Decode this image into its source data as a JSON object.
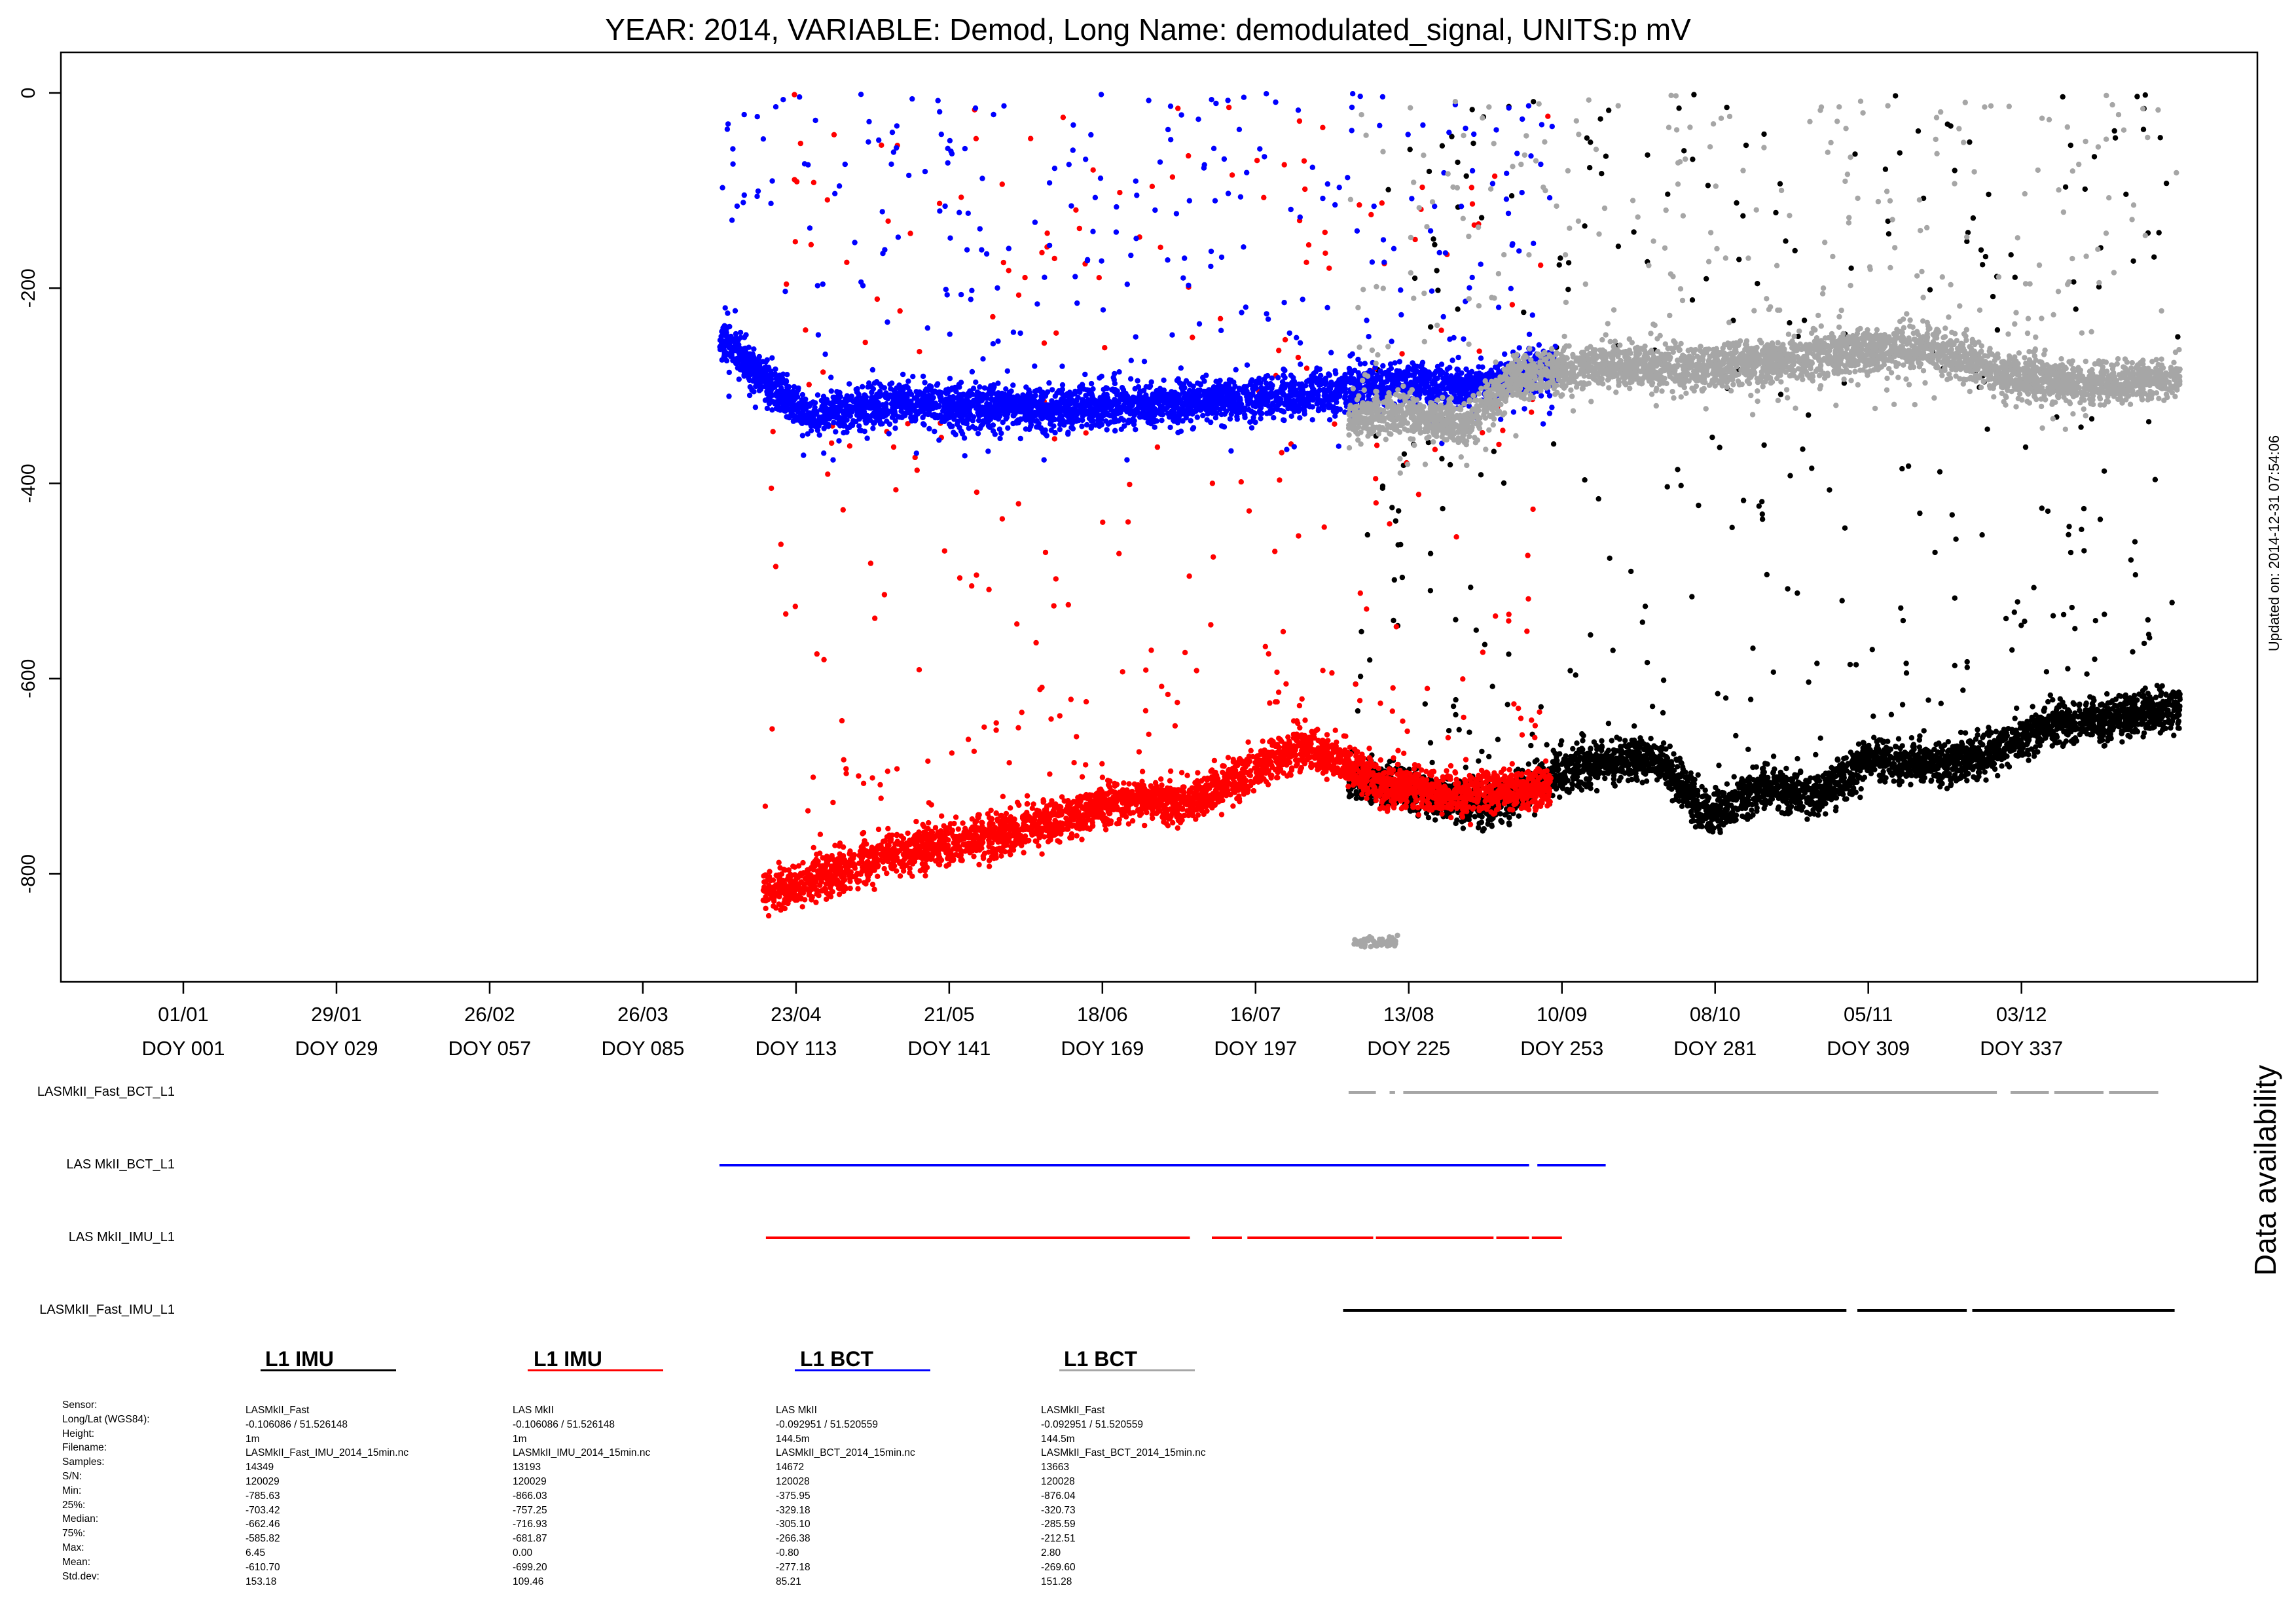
{
  "title": "YEAR: 2014, VARIABLE: Demod, Long Name: demodulated_signal, UNITS:p mV",
  "updated_label": "Updated on: 2014-12-31 07:54:06",
  "availability_title": "Data availability",
  "colors": {
    "fast_imu": "#000000",
    "mkii_imu": "#ff0000",
    "mkii_bct": "#0000ff",
    "fast_bct": "#a6a6a6"
  },
  "chart_data": {
    "type": "scatter",
    "title": "YEAR: 2014, VARIABLE: Demod, Long Name: demodulated_signal, UNITS:p mV",
    "xlabel": "",
    "ylabel": "",
    "x_unit": "day of year",
    "xlim": [
      -4,
      403
    ],
    "ylim": [
      -910,
      40
    ],
    "yticks": [
      0,
      -200,
      -400,
      -600,
      -800
    ],
    "ytick_labels": [
      "0",
      "-200",
      "-400",
      "-600",
      "-800"
    ],
    "xticks": [
      {
        "doy": 1,
        "date": "01/01",
        "label": "DOY 001"
      },
      {
        "doy": 29,
        "date": "29/01",
        "label": "DOY 029"
      },
      {
        "doy": 57,
        "date": "26/02",
        "label": "DOY 057"
      },
      {
        "doy": 85,
        "date": "26/03",
        "label": "DOY 085"
      },
      {
        "doy": 113,
        "date": "23/04",
        "label": "DOY 113"
      },
      {
        "doy": 141,
        "date": "21/05",
        "label": "DOY 141"
      },
      {
        "doy": 169,
        "date": "18/06",
        "label": "DOY 169"
      },
      {
        "doy": 197,
        "date": "16/07",
        "label": "DOY 197"
      },
      {
        "doy": 225,
        "date": "13/08",
        "label": "DOY 225"
      },
      {
        "doy": 253,
        "date": "10/09",
        "label": "DOY 253"
      },
      {
        "doy": 281,
        "date": "08/10",
        "label": "DOY 281"
      },
      {
        "doy": 309,
        "date": "05/11",
        "label": "DOY 309"
      },
      {
        "doy": 337,
        "date": "03/12",
        "label": "DOY 337"
      }
    ],
    "grid": false,
    "series": [
      {
        "name": "LASMkII_Fast_IMU_L1",
        "color": "#000000",
        "doy_range": [
          214,
          366
        ],
        "baseline": [
          [
            214,
            -700
          ],
          [
            225,
            -715
          ],
          [
            240,
            -730
          ],
          [
            255,
            -690
          ],
          [
            270,
            -680
          ],
          [
            280,
            -740
          ],
          [
            290,
            -710
          ],
          [
            300,
            -720
          ],
          [
            310,
            -680
          ],
          [
            320,
            -690
          ],
          [
            330,
            -680
          ],
          [
            340,
            -650
          ],
          [
            355,
            -640
          ],
          [
            366,
            -630
          ]
        ],
        "min": -785.63,
        "max": 6.45
      },
      {
        "name": "LAS MkII_IMU_L1",
        "color": "#ff0000",
        "doy_range": [
          107,
          251
        ],
        "baseline": [
          [
            107,
            -820
          ],
          [
            120,
            -800
          ],
          [
            130,
            -780
          ],
          [
            140,
            -770
          ],
          [
            150,
            -760
          ],
          [
            160,
            -745
          ],
          [
            170,
            -730
          ],
          [
            178,
            -720
          ],
          [
            183,
            -730
          ],
          [
            195,
            -700
          ],
          [
            205,
            -670
          ],
          [
            212,
            -680
          ],
          [
            220,
            -710
          ],
          [
            235,
            -720
          ],
          [
            251,
            -710
          ]
        ],
        "min": -866.03,
        "max": 0.0
      },
      {
        "name": "LAS MkII_BCT_L1",
        "color": "#0000ff",
        "doy_range": [
          99,
          252
        ],
        "baseline": [
          [
            99,
            -250
          ],
          [
            105,
            -280
          ],
          [
            115,
            -330
          ],
          [
            130,
            -320
          ],
          [
            145,
            -320
          ],
          [
            160,
            -325
          ],
          [
            175,
            -320
          ],
          [
            190,
            -315
          ],
          [
            205,
            -310
          ],
          [
            220,
            -300
          ],
          [
            235,
            -300
          ],
          [
            252,
            -280
          ]
        ],
        "min": -375.95,
        "max": -0.8
      },
      {
        "name": "LASMkII_Fast_BCT_L1",
        "color": "#a6a6a6",
        "doy_range": [
          214,
          366
        ],
        "baseline": [
          [
            222,
            -330
          ],
          [
            235,
            -340
          ],
          [
            245,
            -290
          ],
          [
            260,
            -280
          ],
          [
            280,
            -280
          ],
          [
            300,
            -270
          ],
          [
            320,
            -260
          ],
          [
            335,
            -290
          ],
          [
            350,
            -300
          ],
          [
            366,
            -290
          ]
        ],
        "outlier_cluster": {
          "doy_range": [
            215,
            223
          ],
          "value": -870
        },
        "min": -876.04,
        "max": 2.8
      }
    ]
  },
  "availability": [
    {
      "label": "LASMkII_Fast_BCT_L1",
      "color": "#a6a6a6",
      "segments": [
        [
          214,
          219
        ],
        [
          221.5,
          222.5
        ],
        [
          224,
          332.5
        ],
        [
          335,
          342
        ],
        [
          343,
          352
        ],
        [
          353,
          362
        ]
      ]
    },
    {
      "label": "LAS MkII_BCT_L1",
      "color": "#0000ff",
      "segments": [
        [
          99,
          247
        ],
        [
          248.5,
          261
        ]
      ]
    },
    {
      "label": "LAS MkII_IMU_L1",
      "color": "#ff0000",
      "segments": [
        [
          107.5,
          185
        ],
        [
          189,
          194.5
        ],
        [
          195.5,
          218.5
        ],
        [
          219,
          240.5
        ],
        [
          241,
          247
        ],
        [
          247.5,
          253
        ]
      ]
    },
    {
      "label": "LASMkII_Fast_IMU_L1",
      "color": "#000000",
      "segments": [
        [
          213,
          305
        ],
        [
          307,
          327
        ],
        [
          328,
          365
        ]
      ]
    }
  ],
  "stats": {
    "row_labels": [
      "Sensor:",
      "Long/Lat (WGS84):",
      "Height:",
      "Filename:",
      "Samples:",
      "S/N:",
      "Min:",
      "25%:",
      "Median:",
      "75%:",
      "Max:",
      "Mean:",
      "Std.dev:"
    ],
    "columns": [
      {
        "header": "L1 IMU",
        "color": "#000000",
        "values": [
          "LASMkII_Fast",
          " -0.106086 / 51.526148",
          "1m",
          "LASMkII_Fast_IMU_2014_15min.nc",
          "14349",
          "120029",
          "-785.63",
          "-703.42",
          "-662.46",
          "-585.82",
          "6.45",
          "-610.70",
          "153.18"
        ]
      },
      {
        "header": "L1 IMU",
        "color": "#ff0000",
        "values": [
          "LAS MkII",
          " -0.106086 / 51.526148",
          "1m",
          "LASMkII_IMU_2014_15min.nc",
          "13193",
          "120029",
          "-866.03",
          "-757.25",
          "-716.93",
          "-681.87",
          "0.00",
          "-699.20",
          "109.46"
        ]
      },
      {
        "header": "L1 BCT",
        "color": "#0000ff",
        "values": [
          "LAS MkII",
          " -0.092951 / 51.520559",
          "144.5m",
          "LASMkII_BCT_2014_15min.nc",
          "14672",
          "120028",
          "-375.95",
          "-329.18",
          "-305.10",
          "-266.38",
          "-0.80",
          "-277.18",
          "85.21"
        ]
      },
      {
        "header": "L1 BCT",
        "color": "#a6a6a6",
        "values": [
          "LASMkII_Fast",
          " -0.092951 / 51.520559",
          "144.5m",
          "LASMkII_Fast_BCT_2014_15min.nc",
          "13663",
          "120028",
          "-876.04",
          "-320.73",
          "-285.59",
          "-212.51",
          "2.80",
          "-269.60",
          "151.28"
        ]
      }
    ]
  }
}
